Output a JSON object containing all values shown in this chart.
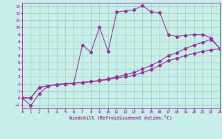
{
  "bg_color": "#c8eeea",
  "line_color": "#993399",
  "grid_color": "#99ccbb",
  "xlabel": "Windchill (Refroidissement éolien,°C)",
  "xlim": [
    0,
    23
  ],
  "ylim": [
    -1.5,
    13.5
  ],
  "xticks": [
    0,
    1,
    2,
    3,
    4,
    5,
    6,
    7,
    8,
    9,
    10,
    11,
    12,
    13,
    14,
    15,
    16,
    17,
    18,
    19,
    20,
    21,
    22,
    23
  ],
  "yticks": [
    -1,
    0,
    1,
    2,
    3,
    4,
    5,
    6,
    7,
    8,
    9,
    10,
    11,
    12,
    13
  ],
  "line1_x": [
    0,
    1,
    2,
    3,
    4,
    5,
    6,
    7,
    8,
    9,
    10,
    11,
    12,
    13,
    14,
    15,
    16,
    17,
    18,
    19,
    20,
    21,
    22,
    23
  ],
  "line1_y": [
    0.0,
    0.0,
    1.5,
    1.7,
    1.9,
    2.0,
    2.1,
    2.2,
    2.3,
    2.4,
    2.6,
    2.8,
    3.0,
    3.2,
    3.6,
    4.0,
    4.6,
    5.3,
    5.6,
    6.0,
    6.3,
    6.6,
    6.8,
    7.0
  ],
  "line2_x": [
    0,
    1,
    2,
    3,
    4,
    5,
    6,
    7,
    8,
    9,
    10,
    11,
    12,
    13,
    14,
    15,
    16,
    17,
    18,
    19,
    20,
    21,
    22,
    23
  ],
  "line2_y": [
    0.0,
    -1.1,
    0.6,
    1.7,
    1.85,
    1.95,
    2.05,
    7.5,
    6.5,
    10.0,
    6.6,
    12.2,
    12.35,
    12.5,
    13.1,
    12.2,
    12.15,
    9.0,
    8.7,
    8.9,
    9.0,
    9.0,
    8.5,
    7.0
  ],
  "line3_x": [
    0,
    1,
    2,
    3,
    4,
    5,
    6,
    7,
    8,
    9,
    10,
    11,
    12,
    13,
    14,
    15,
    16,
    17,
    18,
    19,
    20,
    21,
    22,
    23
  ],
  "line3_y": [
    0.0,
    0.0,
    1.5,
    1.7,
    1.9,
    2.0,
    2.1,
    2.2,
    2.3,
    2.5,
    2.7,
    3.0,
    3.3,
    3.6,
    4.1,
    4.6,
    5.2,
    6.0,
    6.4,
    7.0,
    7.5,
    7.9,
    8.3,
    7.0
  ]
}
